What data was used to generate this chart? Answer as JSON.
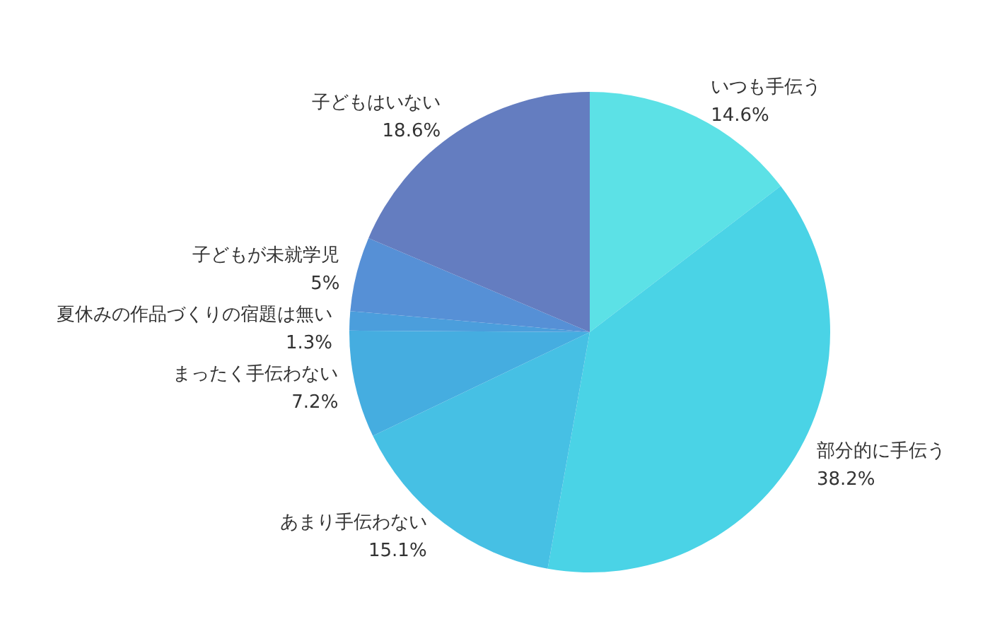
{
  "chart_data": {
    "type": "pie",
    "categories": [
      "いつも手伝う",
      "部分的に手伝う",
      "あまり手伝わない",
      "まったく手伝わない",
      "夏休みの作品づくりの宿題は無い",
      "子どもが未就学児",
      "子どもはいない"
    ],
    "values": [
      14.6,
      38.2,
      15.1,
      7.2,
      1.3,
      5,
      18.6
    ],
    "value_labels": [
      "14.6%",
      "38.2%",
      "15.1%",
      "7.2%",
      "1.3%",
      "5%",
      "18.6%"
    ],
    "colors": [
      "#5ce1e6",
      "#4ad3e6",
      "#46c0e4",
      "#45ade0",
      "#4b9edc",
      "#5690d6",
      "#647dc0"
    ],
    "legend": false
  }
}
